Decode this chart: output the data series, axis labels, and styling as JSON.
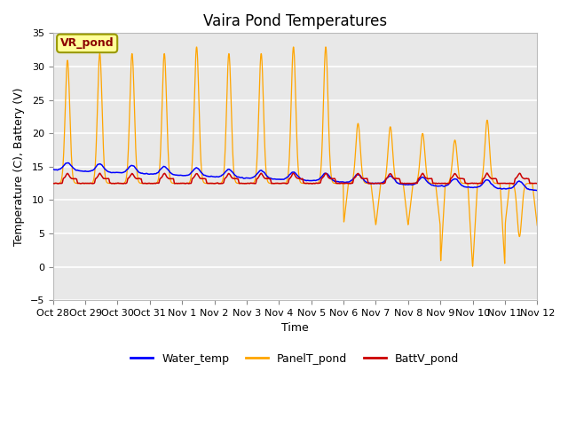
{
  "title": "Vaira Pond Temperatures",
  "xlabel": "Time",
  "ylabel": "Temperature (C), Battery (V)",
  "ylim": [
    -5,
    35
  ],
  "yticks": [
    -5,
    0,
    5,
    10,
    15,
    20,
    25,
    30,
    35
  ],
  "xtick_labels": [
    "Oct 28",
    "Oct 29",
    "Oct 30",
    "Oct 31",
    "Nov 1",
    "Nov 2",
    "Nov 3",
    "Nov 4",
    "Nov 5",
    "Nov 6",
    "Nov 7",
    "Nov 8",
    "Nov 9",
    "Nov 10",
    "Nov 11",
    "Nov 12"
  ],
  "bg_color": "#e8e8e8",
  "fig_color": "#ffffff",
  "water_color": "#0000ff",
  "panel_color": "#ffa500",
  "batt_color": "#cc0000",
  "annotation_text": "VR_pond",
  "annotation_bg": "#ffff99",
  "annotation_border": "#999900",
  "legend_labels": [
    "Water_temp",
    "PanelT_pond",
    "BattV_pond"
  ]
}
